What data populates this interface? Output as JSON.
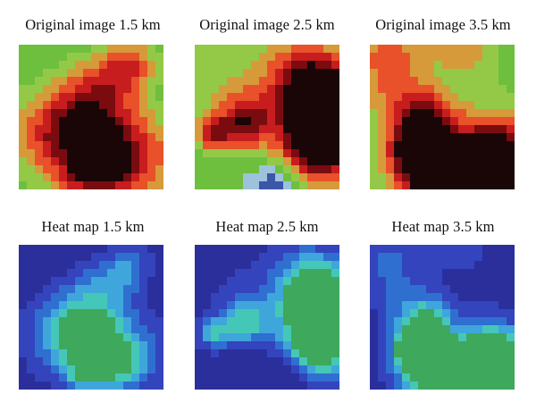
{
  "figure": {
    "rows": [
      {
        "panels": [
          {
            "caption": "Original image 1.5 km",
            "kind": "original",
            "seed": 11
          },
          {
            "caption": "Original image 2.5 km",
            "kind": "original",
            "seed": 23
          },
          {
            "caption": "Original image 3.5 km",
            "kind": "original",
            "seed": 37
          }
        ]
      },
      {
        "panels": [
          {
            "caption": "Heat map 1.5 km",
            "kind": "heatmap",
            "seed": 11
          },
          {
            "caption": "Heat map 2.5 km",
            "kind": "heatmap",
            "seed": 23
          },
          {
            "caption": "Heat map 3.5 km",
            "kind": "heatmap",
            "seed": 37
          }
        ]
      }
    ],
    "colors": {
      "original_palette": [
        "#ffffff",
        "#3a57a8",
        "#9ec1dc",
        "#6fbf3f",
        "#93c947",
        "#d79a3a",
        "#e8512a",
        "#c81d1f",
        "#7a0c10",
        "#1a0507"
      ],
      "heatmap_palette": [
        "#2a2f9c",
        "#3344bd",
        "#2f6fd0",
        "#3fa6dc",
        "#45c7b8",
        "#3ea85c"
      ]
    }
  }
}
